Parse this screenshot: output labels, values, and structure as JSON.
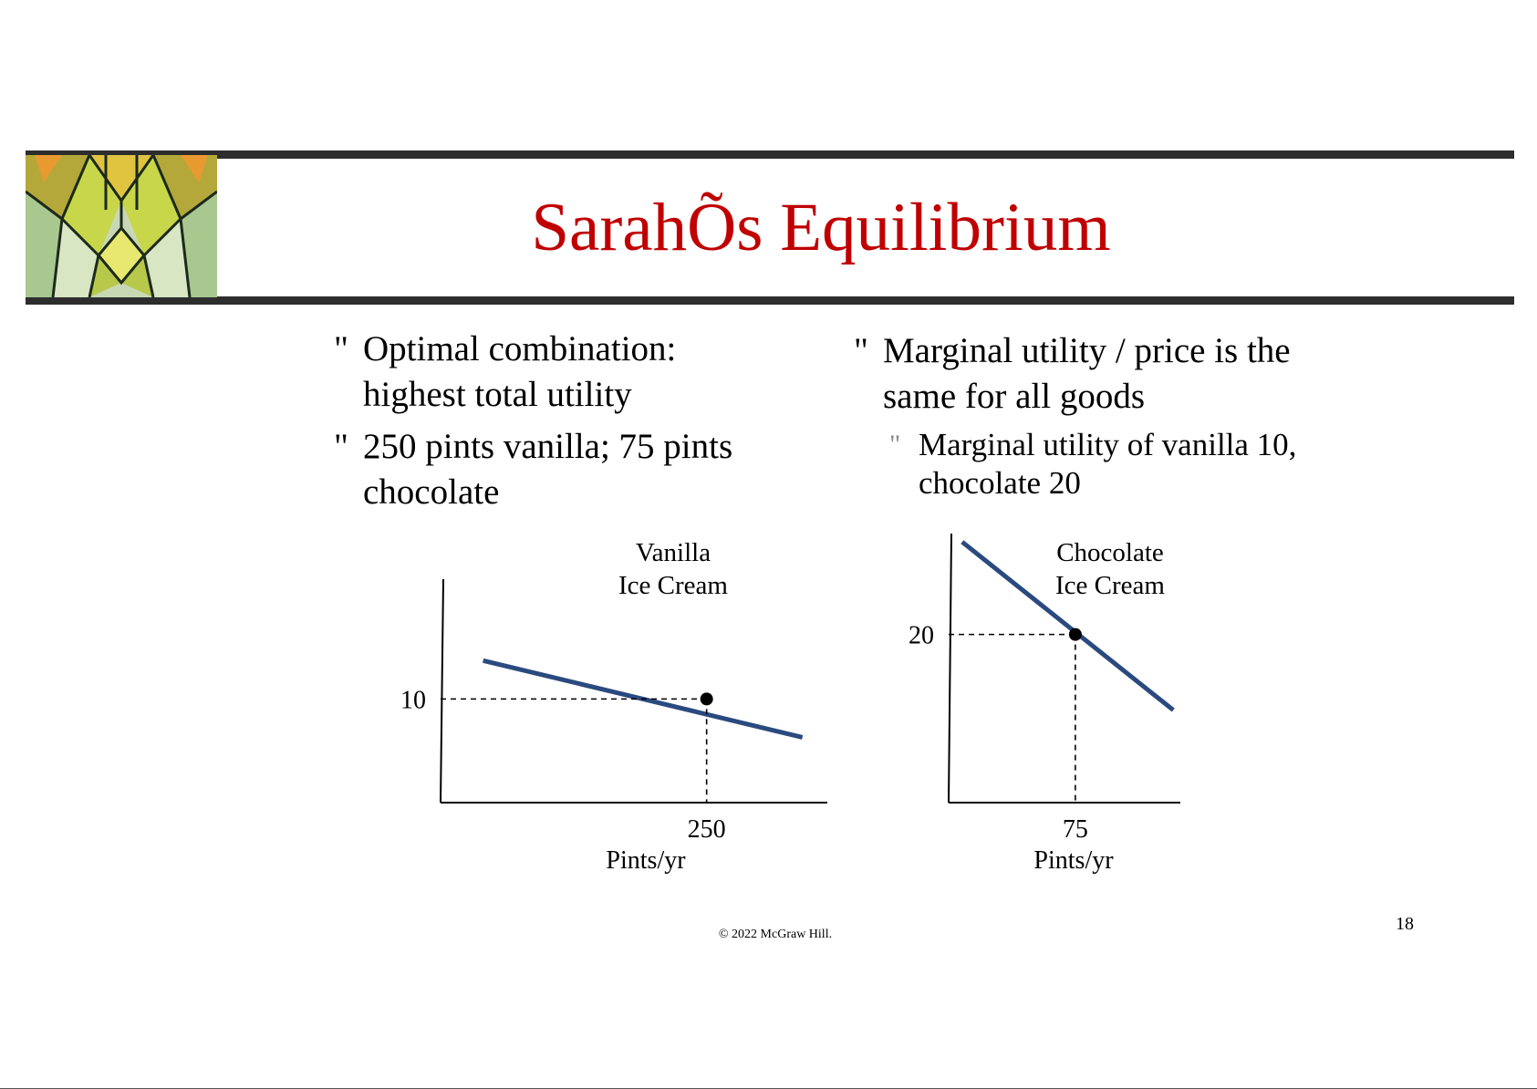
{
  "slide": {
    "title": "SarahÕs Equilibrium",
    "bullet_mark": "\"",
    "left_bullets": [
      "Optimal combination: highest total utility",
      "250 pints vanilla; 75 pints chocolate"
    ],
    "right_bullet": "Marginal utility / price is the same for all goods",
    "right_sub_bullet": "Marginal utility of vanilla 10, chocolate 20",
    "footer": "© 2022 McGraw Hill.",
    "page_number": "18"
  },
  "chart_data": [
    {
      "type": "line",
      "title": "Vanilla Ice Cream",
      "title_lines": [
        "Vanilla",
        "Ice Cream"
      ],
      "xlabel": "Pints/yr",
      "ylabel": "",
      "x_ticks": [
        250
      ],
      "x_tick_labels": [
        "250"
      ],
      "y_ticks": [
        10
      ],
      "y_tick_labels": [
        "10"
      ],
      "xlim": [
        0,
        360
      ],
      "ylim": [
        0,
        22
      ],
      "series": [
        {
          "x": [
            40,
            340
          ],
          "y": [
            13.7,
            6.3
          ],
          "color": "#2a4a7f"
        }
      ],
      "equilibrium_point": {
        "x": 250,
        "y": 10
      },
      "grid": false,
      "legend": "none"
    },
    {
      "type": "line",
      "title": "Chocolate Ice Cream",
      "title_lines": [
        "Chocolate",
        "Ice Cream"
      ],
      "xlabel": "Pints/yr",
      "ylabel": "",
      "x_ticks": [
        75
      ],
      "x_tick_labels": [
        "75"
      ],
      "y_ticks": [
        20
      ],
      "y_tick_labels": [
        "20"
      ],
      "xlim": [
        0,
        135
      ],
      "ylim": [
        0,
        32
      ],
      "series": [
        {
          "x": [
            8,
            133
          ],
          "y": [
            31,
            11
          ],
          "color": "#2a4a7f"
        }
      ],
      "equilibrium_point": {
        "x": 75,
        "y": 20
      },
      "grid": false,
      "legend": "none"
    }
  ]
}
